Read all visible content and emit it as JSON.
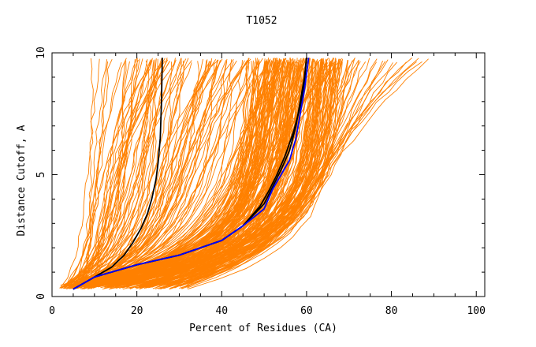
{
  "chart_data": {
    "type": "line",
    "title": "T1052",
    "xlabel": "Percent of Residues (CA)",
    "ylabel": "Distance Cutoff, A",
    "xlim": [
      0,
      102
    ],
    "ylim": [
      0,
      10
    ],
    "x_ticks": [
      "0",
      "20",
      "40",
      "60",
      "80",
      "100"
    ],
    "y_ticks": [
      "0",
      "5",
      "10"
    ],
    "x_tick_values": [
      0,
      20,
      40,
      60,
      80,
      100
    ],
    "y_tick_values": [
      0,
      5,
      10
    ],
    "grid": false,
    "colors": {
      "background_models": "#ff8000",
      "highlight_1": "#000000",
      "highlight_2": "#000000",
      "highlight_3": "#0000ff"
    },
    "background_model_count": 300,
    "series": [
      {
        "color": "#000000",
        "x": [
          10.0,
          14.0,
          17.0,
          19.0,
          21.0,
          22.5,
          23.5,
          24.5,
          25.0,
          25.5,
          25.8,
          26.0
        ],
        "y": [
          0.8,
          1.2,
          1.7,
          2.2,
          2.8,
          3.4,
          4.0,
          4.8,
          5.5,
          6.5,
          8.0,
          9.8
        ]
      },
      {
        "color": "#000000",
        "x": [
          5.0,
          10.0,
          20.0,
          30.0,
          40.0,
          45.0,
          49.0,
          51.0,
          53.0,
          55.0,
          57.0,
          58.5,
          59.5,
          60.0
        ],
        "y": [
          0.3,
          0.8,
          1.3,
          1.7,
          2.3,
          2.9,
          3.7,
          4.3,
          5.0,
          5.8,
          6.8,
          7.8,
          8.8,
          9.8
        ]
      },
      {
        "color": "#000000",
        "x": [
          5.0,
          10.0,
          20.0,
          30.0,
          40.0,
          45.0,
          50.0,
          52.0,
          54.0,
          56.0,
          57.5,
          58.5,
          59.5,
          60.0
        ],
        "y": [
          0.3,
          0.8,
          1.3,
          1.7,
          2.3,
          2.9,
          3.8,
          4.5,
          5.2,
          6.0,
          7.0,
          8.0,
          9.0,
          9.8
        ]
      },
      {
        "color": "#0000ff",
        "x": [
          5.0,
          10.0,
          20.0,
          30.0,
          40.0,
          45.0,
          50.0,
          52.0,
          54.0,
          56.0,
          57.5,
          58.5,
          59.5,
          60.5
        ],
        "y": [
          0.3,
          0.8,
          1.3,
          1.7,
          2.3,
          2.9,
          3.6,
          4.4,
          5.0,
          5.6,
          6.5,
          7.5,
          8.5,
          9.8
        ]
      }
    ]
  }
}
